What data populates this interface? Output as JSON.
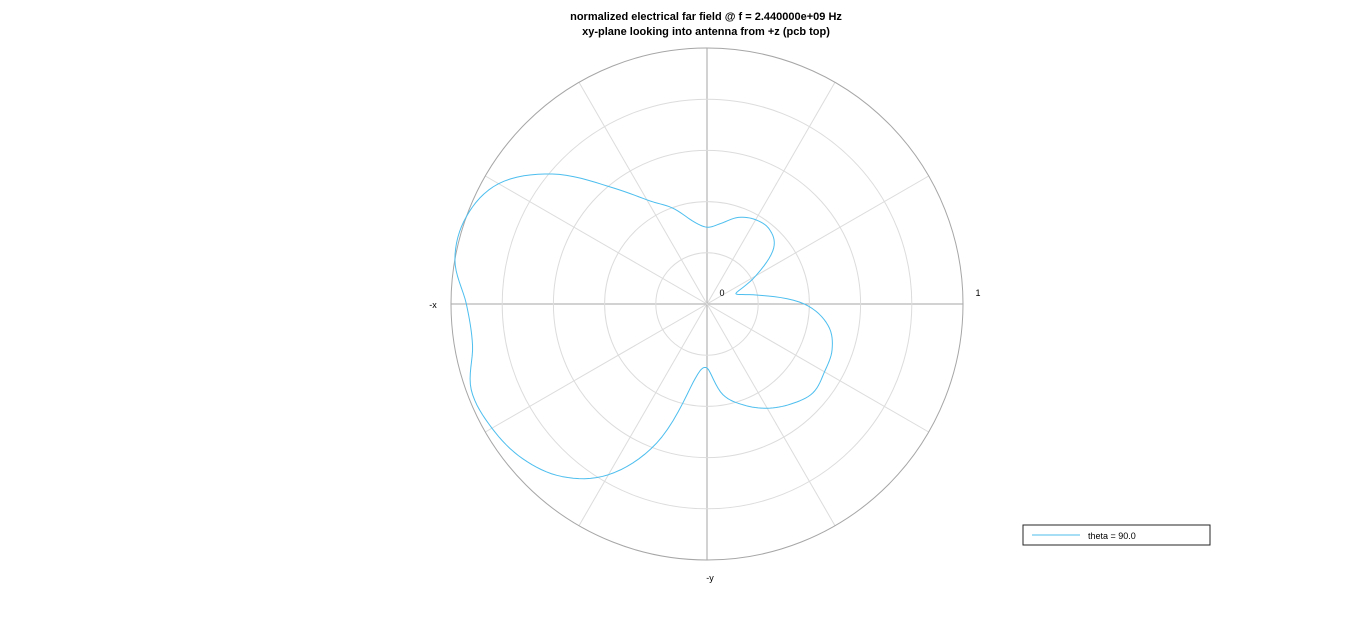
{
  "chart_data": {
    "type": "line",
    "projection": "polar",
    "title": "normalized electrical far field @ f = 2.440000e+09 Hz",
    "subtitle": "xy-plane looking into antenna from +z (pcb top)",
    "axis_labels": {
      "left": "-x",
      "bottom": "-y"
    },
    "radial_tick_labels": {
      "min": "0",
      "max": "1"
    },
    "rlim": [
      0,
      1
    ],
    "radial_rings": 5,
    "angular_spokes_deg": 30,
    "grid": true,
    "legend_position": "bottom-right",
    "series": [
      {
        "name": "theta = 90.0",
        "color": "#4dbeee",
        "phi_deg": [
          0,
          10,
          20,
          30,
          40,
          50,
          60,
          70,
          80,
          90,
          100,
          110,
          120,
          130,
          140,
          150,
          160,
          170,
          180,
          190,
          200,
          210,
          220,
          230,
          240,
          250,
          260,
          270,
          280,
          290,
          300,
          310,
          320,
          330,
          340,
          350
        ],
        "r": [
          0.38,
          0.2,
          0.12,
          0.22,
          0.34,
          0.38,
          0.38,
          0.36,
          0.32,
          0.3,
          0.33,
          0.4,
          0.47,
          0.6,
          0.79,
          0.94,
          1.0,
          1.0,
          0.94,
          0.93,
          0.98,
          0.97,
          0.94,
          0.88,
          0.77,
          0.58,
          0.31,
          0.25,
          0.36,
          0.42,
          0.47,
          0.51,
          0.54,
          0.53,
          0.52,
          0.48
        ]
      }
    ]
  }
}
